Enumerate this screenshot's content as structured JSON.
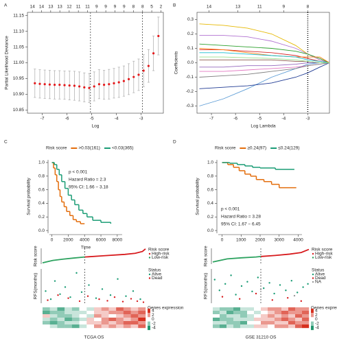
{
  "chart_data": [
    {
      "type": "errorbar",
      "panel": "A",
      "frame": "box",
      "xlabel": "Log",
      "ylabel": "Partial Likelihood Deviance",
      "color": "#e41a1c",
      "x": [
        -7.3,
        -7.1,
        -6.9,
        -6.7,
        -6.5,
        -6.3,
        -6.1,
        -5.9,
        -5.7,
        -5.5,
        -5.3,
        -5.1,
        -4.9,
        -4.7,
        -4.5,
        -4.3,
        -4.1,
        -3.9,
        -3.7,
        -3.5,
        -3.3,
        -3.1,
        -2.9,
        -2.7,
        -2.5,
        -2.3
      ],
      "values": [
        10.935,
        10.933,
        10.932,
        10.931,
        10.93,
        10.93,
        10.929,
        10.928,
        10.927,
        10.925,
        10.922,
        10.92,
        10.925,
        10.932,
        10.93,
        10.932,
        10.935,
        10.938,
        10.942,
        10.948,
        10.955,
        10.962,
        10.975,
        10.99,
        11.03,
        11.085
      ],
      "errors": [
        0.045,
        0.045,
        0.045,
        0.045,
        0.045,
        0.045,
        0.045,
        0.046,
        0.046,
        0.046,
        0.046,
        0.046,
        0.046,
        0.046,
        0.046,
        0.047,
        0.047,
        0.048,
        0.048,
        0.049,
        0.05,
        0.05,
        0.051,
        0.052,
        0.055,
        0.06
      ],
      "xlim": [
        -7.6,
        -2.1
      ],
      "ylim": [
        10.84,
        11.16
      ],
      "xticks": [
        -7,
        -6,
        -5,
        -4,
        -3
      ],
      "yticks": [
        10.85,
        {
          "value": 10.9,
          "label": "10.90"
        },
        10.95,
        {
          "value": 11,
          "label": "11.00"
        },
        11.05,
        {
          "value": 11.1,
          "label": "11.10"
        },
        11.15
      ],
      "top_x": [
        -7.4,
        -7.03,
        -6.66,
        -6.29,
        -5.91,
        -5.54,
        -5.17,
        -4.8,
        -4.43,
        -4.06,
        -3.69,
        -3.31,
        -2.94,
        -2.57,
        -2.2
      ],
      "top_labels": [
        14,
        14,
        13,
        13,
        12,
        11,
        11,
        9,
        9,
        9,
        9,
        8,
        8,
        5,
        2
      ],
      "reference_lines": [
        -5.05,
        -2.95
      ]
    },
    {
      "type": "line",
      "panel": "B",
      "frame": "box",
      "xlabel": "Log Lambda",
      "ylabel": "Coefficients",
      "x": [
        -7.5,
        -6.5,
        -5.5,
        -4.5,
        -3.5,
        -3,
        -2.5,
        -2.1
      ],
      "series": [
        {
          "color": "#e6b800",
          "values": [
            0.27,
            0.26,
            0.24,
            0.2,
            0.12,
            0.06,
            0.02,
            0
          ]
        },
        {
          "color": "#5b9bd5",
          "values": [
            -0.3,
            -0.25,
            -0.18,
            -0.1,
            -0.04,
            -0.01,
            0,
            0
          ]
        },
        {
          "color": "#b070d0",
          "values": [
            0.19,
            0.19,
            0.18,
            0.15,
            0.1,
            0.06,
            0.02,
            0
          ]
        },
        {
          "color": "#2ca02c",
          "values": [
            0.13,
            0.12,
            0.11,
            0.1,
            0.08,
            0.06,
            0.03,
            0
          ]
        },
        {
          "color": "#1f3a93",
          "values": [
            -0.18,
            -0.17,
            -0.16,
            -0.14,
            -0.1,
            -0.07,
            -0.03,
            0
          ]
        },
        {
          "color": "#d62728",
          "values": [
            0.09,
            0.09,
            0.08,
            0.07,
            0.05,
            0.03,
            0.01,
            0
          ]
        },
        {
          "color": "#ff7f0e",
          "values": [
            0.1,
            0.09,
            0.07,
            0.05,
            0.04,
            0.04,
            0.04,
            0
          ]
        },
        {
          "color": "#17becf",
          "values": [
            0.07,
            0.07,
            0.06,
            0.05,
            0.04,
            0.02,
            0.01,
            0
          ]
        },
        {
          "color": "#e377c2",
          "values": [
            -0.06,
            -0.06,
            -0.05,
            -0.04,
            -0.03,
            -0.02,
            -0.01,
            0
          ]
        },
        {
          "color": "#7f7f7f",
          "values": [
            -0.1,
            -0.09,
            -0.08,
            -0.06,
            -0.04,
            -0.02,
            -0.01,
            0
          ]
        },
        {
          "color": "#8c564b",
          "values": [
            0.02,
            0.02,
            0.02,
            0.02,
            0.01,
            0.01,
            0,
            0
          ]
        },
        {
          "color": "#9467bd",
          "values": [
            -0.03,
            -0.03,
            -0.02,
            -0.02,
            -0.01,
            0,
            0,
            0
          ]
        },
        {
          "color": "#98df8a",
          "values": [
            0.04,
            0.04,
            0.035,
            0.03,
            0.02,
            0.01,
            0,
            0
          ]
        }
      ],
      "xlim": [
        -7.6,
        -2.1
      ],
      "ylim": [
        -0.35,
        0.35
      ],
      "xticks": [
        -7,
        -6,
        -5,
        -4,
        -3
      ],
      "yticks": [
        -0.3,
        -0.2,
        -0.1,
        {
          "value": 0,
          "label": "0.0"
        },
        0.1,
        0.2,
        0.3
      ],
      "top_x": [
        -7.1,
        -5.9,
        -5,
        -4,
        -3
      ],
      "top_labels": [
        14,
        13,
        11,
        9,
        8
      ],
      "reference_lines": [
        -3
      ]
    },
    {
      "type": "step",
      "panel": "C",
      "frame": "open",
      "xlabel": "Time",
      "ylabel": "Survival probability",
      "legend_title": "Risk score",
      "series": [
        {
          "name": ">0.03(161)",
          "color": "#e36c0a",
          "x": [
            0,
            200,
            400,
            600,
            800,
            1000,
            1200,
            1500,
            1800,
            2200,
            2600,
            3000,
            3500,
            4000
          ],
          "values": [
            1,
            0.92,
            0.82,
            0.72,
            0.6,
            0.5,
            0.42,
            0.35,
            0.28,
            0.22,
            0.16,
            0.13,
            0.1,
            0.1
          ]
        },
        {
          "name": "<0.03(365)",
          "color": "#1a9c75",
          "x": [
            0,
            300,
            600,
            900,
            1200,
            1600,
            2000,
            2400,
            2800,
            3300,
            3800,
            4300,
            5000,
            6000,
            7200
          ],
          "values": [
            1,
            0.97,
            0.9,
            0.82,
            0.72,
            0.62,
            0.52,
            0.45,
            0.38,
            0.3,
            0.25,
            0.2,
            0.15,
            0.12,
            0.1
          ]
        }
      ],
      "annotations": [
        "p < 0.001",
        "Hazard Ratio = 2.3",
        "95% CI: 1.66 − 3.18"
      ],
      "xlim": [
        -300,
        8600
      ],
      "ylim": [
        -0.04,
        1.04
      ],
      "xticks": [
        0,
        2000,
        4000,
        6000,
        8000
      ],
      "yticks": [
        {
          "value": 0,
          "label": "0.0"
        },
        0.2,
        0.4,
        0.6,
        0.8,
        {
          "value": 1,
          "label": "1.0"
        }
      ]
    },
    {
      "type": "line",
      "frame": "open",
      "ylabel": "Risk score",
      "legend_title": "Risk score",
      "series": [
        {
          "name": "High-risk",
          "color": "#d7191c",
          "x": [
            41,
            60,
            80,
            90,
            97,
            100
          ],
          "values": [
            -0.3,
            0.2,
            0.7,
            1.1,
            1.8,
            2.8
          ]
        },
        {
          "name": "Low-risk",
          "color": "#2ca25f",
          "x": [
            0,
            10,
            20,
            30,
            41
          ],
          "values": [
            -2.5,
            -1.6,
            -1.1,
            -0.7,
            -0.3
          ]
        }
      ],
      "xlim": [
        0,
        100
      ],
      "ylim": [
        -3,
        3
      ],
      "reference_lines": [
        41
      ]
    },
    {
      "type": "scatter",
      "frame": "open",
      "ylabel": "RFS(months)",
      "legend_title": "Status",
      "series": [
        {
          "name": "Alive",
          "color": "#1a9c75",
          "x": [
            3,
            8,
            12,
            17,
            22,
            27,
            33,
            38,
            45,
            52,
            58,
            66,
            73,
            81,
            88,
            95
          ],
          "values": [
            60,
            20,
            110,
            45,
            80,
            30,
            150,
            55,
            90,
            25,
            70,
            40,
            120,
            35,
            60,
            20
          ]
        },
        {
          "name": "Dead",
          "color": "#d7191c",
          "x": [
            5,
            15,
            25,
            36,
            44,
            55,
            63,
            70,
            78,
            86,
            92,
            98
          ],
          "values": [
            15,
            40,
            25,
            10,
            35,
            20,
            12,
            30,
            8,
            22,
            10,
            5
          ]
        }
      ],
      "xlim": [
        0,
        100
      ],
      "ylim": [
        0,
        170
      ],
      "reference_lines": [
        41
      ]
    },
    {
      "type": "heatmap",
      "caption": "TCGA OS",
      "legend_title": "Genes expression",
      "zlim": [
        -4,
        4
      ],
      "colorbar_ticks": [
        4,
        2,
        0,
        -2,
        -4
      ],
      "values": [
        [
          -2,
          -1,
          -3,
          -1,
          -2,
          0,
          -1,
          1,
          2,
          1,
          3,
          2,
          1,
          2
        ],
        [
          -3,
          -2,
          -2,
          -1,
          -1,
          -1,
          0,
          1,
          1,
          2,
          2,
          3,
          2,
          3
        ],
        [
          1,
          -1,
          -2,
          -2,
          -1,
          0,
          -1,
          2,
          1,
          0,
          1,
          2,
          3,
          2
        ],
        [
          -1,
          -2,
          -1,
          -3,
          -2,
          -1,
          1,
          0,
          2,
          3,
          2,
          1,
          2,
          4
        ],
        [
          -2,
          -3,
          -2,
          -1,
          -1,
          0,
          1,
          1,
          2,
          1,
          2,
          3,
          3,
          2
        ],
        [
          0,
          -1,
          -2,
          -2,
          -3,
          -1,
          0,
          2,
          1,
          2,
          1,
          2,
          1,
          3
        ]
      ]
    },
    {
      "type": "step",
      "panel": "D",
      "frame": "open",
      "ylabel": "Survival probability",
      "legend_title": "Risk score",
      "series": [
        {
          "name": "≥0.24(97)",
          "color": "#e36c0a",
          "x": [
            0,
            300,
            600,
            900,
            1200,
            1500,
            1800,
            2200,
            2600,
            3000,
            3900
          ],
          "values": [
            1,
            0.97,
            0.93,
            0.88,
            0.83,
            0.8,
            0.75,
            0.72,
            0.68,
            0.63,
            0.63
          ]
        },
        {
          "name": "≤0.24(129)",
          "color": "#1a9c75",
          "x": [
            0,
            400,
            800,
            1200,
            1600,
            2000,
            2800,
            3800
          ],
          "values": [
            1,
            0.99,
            0.97,
            0.95,
            0.93,
            0.92,
            0.9,
            0.9
          ]
        }
      ],
      "annotations": [
        "p < 0.001",
        "Hazard Ratio = 3.28",
        "95% CI: 1.67 − 6.45"
      ],
      "xlim": [
        -200,
        4200
      ],
      "ylim": [
        -0.04,
        1.04
      ],
      "xticks": [
        0,
        1000,
        2000,
        3000,
        4000
      ],
      "yticks": [
        {
          "value": 0,
          "label": "0.0"
        },
        0.2,
        0.4,
        0.6,
        0.8,
        {
          "value": 1,
          "label": "1.0"
        }
      ]
    },
    {
      "type": "line",
      "frame": "open",
      "ylabel": "Risk score",
      "legend_title": "Risk score",
      "series": [
        {
          "name": "High-risk",
          "color": "#d7191c",
          "x": [
            50,
            65,
            80,
            92,
            100
          ],
          "values": [
            -0.1,
            0.3,
            0.8,
            1.4,
            2.6
          ]
        },
        {
          "name": "Low-risk",
          "color": "#2ca25f",
          "x": [
            0,
            15,
            30,
            45,
            50
          ],
          "values": [
            -2.2,
            -1,
            -0.6,
            -0.3,
            -0.1
          ]
        }
      ],
      "xlim": [
        0,
        100
      ],
      "ylim": [
        -3,
        3
      ],
      "reference_lines": [
        50
      ]
    },
    {
      "type": "scatter",
      "frame": "open",
      "ylabel": "RFS(months)",
      "legend_title": "Status",
      "series": [
        {
          "name": "Alive",
          "color": "#1a9c75",
          "x": [
            2,
            7,
            13,
            19,
            24,
            30,
            36,
            41,
            47,
            53,
            59,
            64,
            70,
            76,
            82,
            88,
            94,
            99
          ],
          "values": [
            110,
            60,
            90,
            130,
            40,
            80,
            100,
            55,
            120,
            70,
            95,
            45,
            85,
            60,
            105,
            50,
            75,
            90
          ]
        },
        {
          "name": "Dead",
          "color": "#d7191c",
          "x": [
            10,
            28,
            45,
            62,
            78,
            92
          ],
          "values": [
            30,
            20,
            45,
            15,
            25,
            10
          ]
        },
        {
          "name": "NA",
          "color": "#999999",
          "x": [
            50,
            85
          ],
          "values": [
            65,
            35
          ]
        }
      ],
      "xlim": [
        0,
        100
      ],
      "ylim": [
        0,
        160
      ],
      "reference_lines": [
        50
      ]
    },
    {
      "type": "heatmap",
      "caption": "GSE 31210 OS",
      "legend_title": "Genes expression",
      "zlim": [
        -4,
        4
      ],
      "colorbar_ticks": [
        4,
        2,
        0,
        -2,
        -4
      ],
      "values": [
        [
          -1,
          -2,
          -2,
          -3,
          -1,
          -1,
          0,
          1,
          2,
          2,
          1,
          3,
          2,
          2
        ],
        [
          -2,
          -1,
          -3,
          -2,
          -2,
          0,
          -1,
          0,
          1,
          2,
          3,
          2,
          2,
          3
        ],
        [
          0,
          -2,
          -1,
          -1,
          -2,
          -1,
          0,
          1,
          2,
          1,
          2,
          1,
          3,
          2
        ],
        [
          -3,
          -2,
          -2,
          -1,
          -1,
          -1,
          1,
          1,
          1,
          2,
          3,
          2,
          1,
          3
        ],
        [
          -1,
          -1,
          -2,
          -2,
          -3,
          0,
          0,
          2,
          2,
          1,
          1,
          3,
          2,
          2
        ],
        [
          -2,
          -3,
          -1,
          -2,
          -1,
          -1,
          1,
          1,
          0,
          2,
          2,
          1,
          3,
          4
        ]
      ]
    }
  ]
}
